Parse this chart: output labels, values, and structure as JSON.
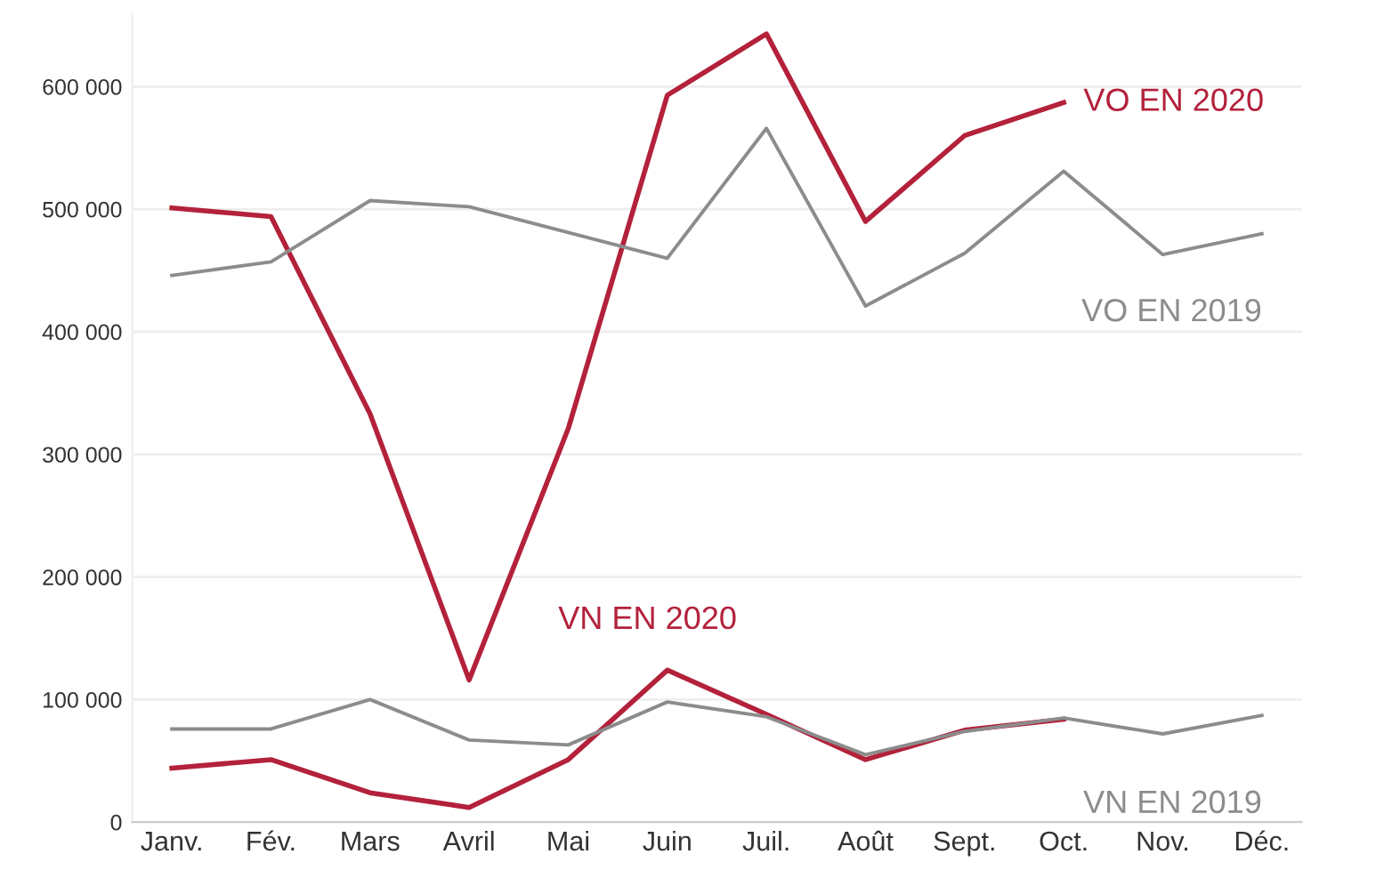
{
  "chart_data": {
    "type": "line",
    "categories": [
      "Janv.",
      "Fév.",
      "Mars",
      "Avril",
      "Mai",
      "Juin",
      "Juil.",
      "Août",
      "Sept.",
      "Oct.",
      "Nov.",
      "Déc."
    ],
    "series": [
      {
        "name": "VO EN 2020",
        "color": "#b3213b",
        "values": [
          501000,
          494000,
          333000,
          116000,
          321000,
          593000,
          643000,
          490000,
          560000,
          587000,
          null,
          null
        ]
      },
      {
        "name": "VO EN 2019",
        "color": "#8c8c8c",
        "values": [
          446000,
          457000,
          507000,
          502000,
          481000,
          460000,
          566000,
          421000,
          464000,
          531000,
          463000,
          480000
        ]
      },
      {
        "name": "VN EN 2020",
        "color": "#b3213b",
        "values": [
          44000,
          51000,
          24000,
          12000,
          51000,
          124000,
          88000,
          51000,
          75000,
          84000,
          null,
          null
        ]
      },
      {
        "name": "VN EN 2019",
        "color": "#8c8c8c",
        "values": [
          76000,
          76000,
          100000,
          67000,
          63000,
          98000,
          86000,
          55000,
          74000,
          85000,
          72000,
          87000
        ]
      }
    ],
    "ylim": [
      0,
      660000
    ],
    "yticks": [
      {
        "value": 0,
        "label": "0"
      },
      {
        "value": 100000,
        "label": "100 000"
      },
      {
        "value": 200000,
        "label": "200 000"
      },
      {
        "value": 300000,
        "label": "300 000"
      },
      {
        "value": 400000,
        "label": "400 000"
      },
      {
        "value": 500000,
        "label": "500 000"
      },
      {
        "value": 600000,
        "label": "600 000"
      }
    ],
    "grid": "y",
    "legend": false,
    "marker": "none",
    "line_style": "solid"
  }
}
